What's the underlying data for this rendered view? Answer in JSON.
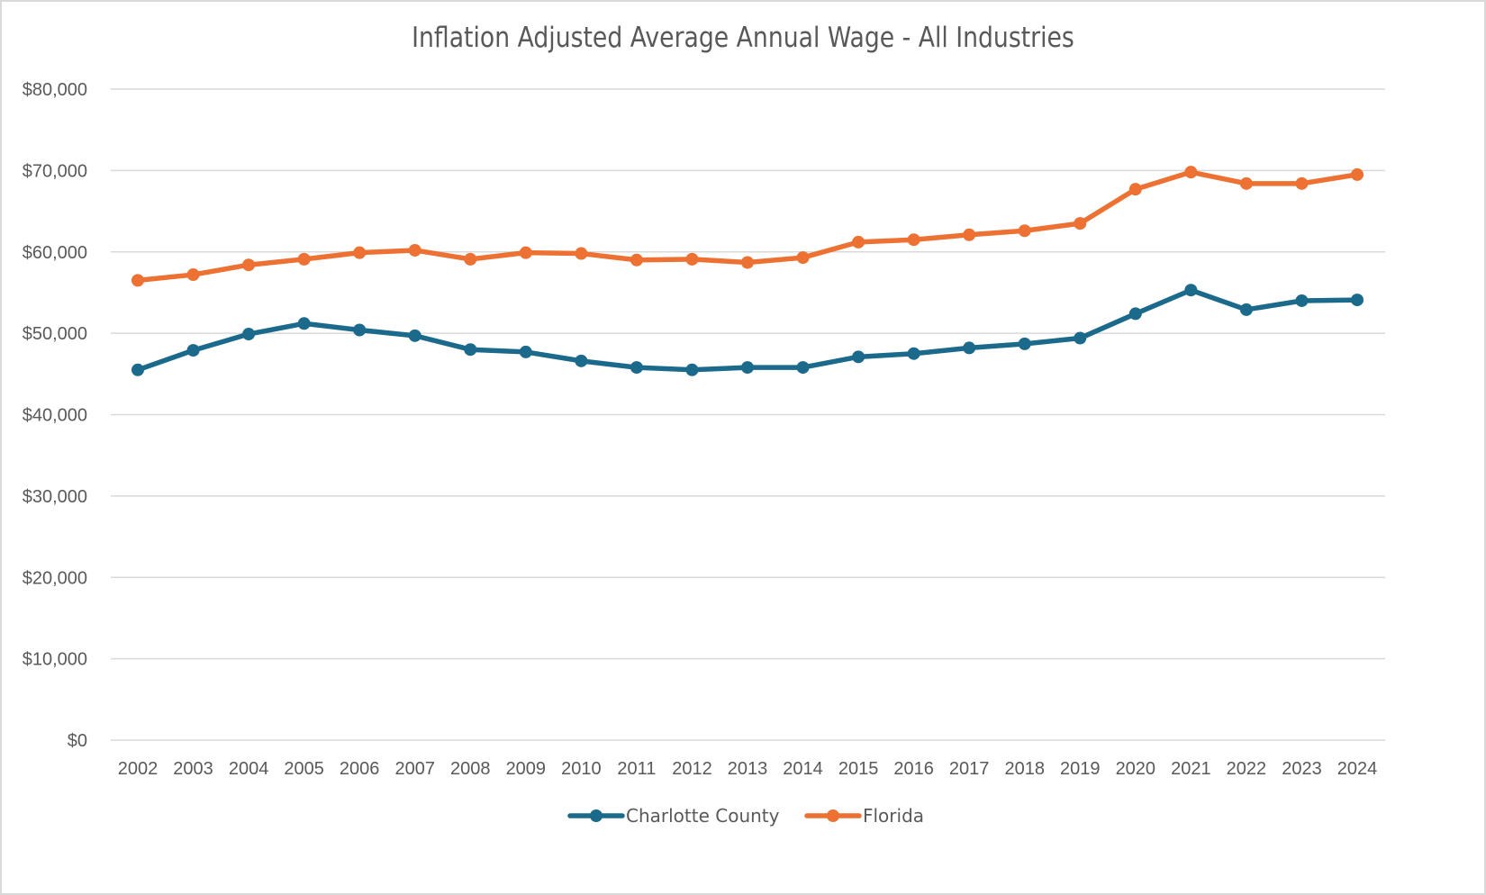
{
  "chart_data": {
    "type": "line",
    "title": "Inflation Adjusted Average Annual Wage - All Industries",
    "xlabel": "",
    "ylabel": "",
    "x": [
      "2002",
      "2003",
      "2004",
      "2005",
      "2006",
      "2007",
      "2008",
      "2009",
      "2010",
      "2011",
      "2012",
      "2013",
      "2014",
      "2015",
      "2016",
      "2017",
      "2018",
      "2019",
      "2020",
      "2021",
      "2022",
      "2023",
      "2024"
    ],
    "ylim": [
      0,
      80000
    ],
    "yticks": [
      0,
      10000,
      20000,
      30000,
      40000,
      50000,
      60000,
      70000,
      80000
    ],
    "ytick_labels": [
      "$0",
      "$10,000",
      "$20,000",
      "$30,000",
      "$40,000",
      "$50,000",
      "$60,000",
      "$70,000",
      "$80,000"
    ],
    "grid": true,
    "legend_position": "bottom",
    "series": [
      {
        "name": "Charlotte County",
        "color": "#1b6a8c",
        "marker": "circle",
        "values": [
          45500,
          47900,
          49900,
          51200,
          50400,
          49700,
          48000,
          47700,
          46600,
          45800,
          45500,
          45800,
          45800,
          47100,
          47500,
          48200,
          48700,
          49400,
          52400,
          55300,
          52900,
          54000,
          54100
        ]
      },
      {
        "name": "Florida",
        "color": "#ec7132",
        "marker": "circle",
        "values": [
          56500,
          57200,
          58400,
          59100,
          59900,
          60200,
          59100,
          59900,
          59800,
          59000,
          59100,
          58700,
          59300,
          61200,
          61500,
          62100,
          62600,
          63500,
          67700,
          69800,
          68400,
          68400,
          69500
        ]
      }
    ]
  }
}
